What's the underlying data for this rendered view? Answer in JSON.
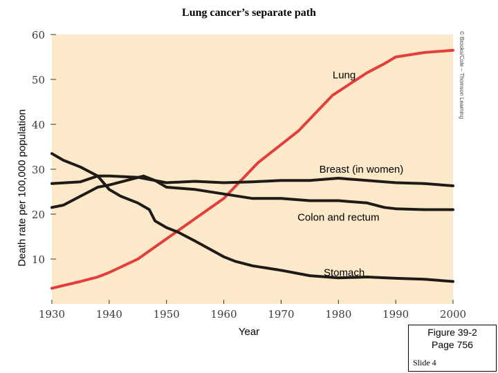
{
  "chart_data": {
    "type": "line",
    "title": "Lung cancer’s separate path",
    "xlabel": "Year",
    "ylabel": "Death rate per 100,000 population",
    "xlim": [
      1930,
      2000
    ],
    "ylim": [
      0,
      60
    ],
    "xticks": [
      "1930",
      "1940",
      "1950",
      "1960",
      "1970",
      "1980",
      "1990",
      "2000"
    ],
    "yticks": [
      "10",
      "20",
      "30",
      "40",
      "50",
      "60"
    ],
    "grid": false,
    "credit": "© Brooks/Cole – Thomson Learning",
    "series": [
      {
        "name": "Lung",
        "color": "#e53c3c",
        "x": [
          1930,
          1935,
          1938,
          1940,
          1945,
          1950,
          1955,
          1960,
          1963,
          1966,
          1970,
          1973,
          1976,
          1979,
          1982,
          1985,
          1988,
          1990,
          1995,
          2000
        ],
        "y": [
          3.5,
          5.0,
          6.0,
          7.0,
          10.0,
          14.5,
          19.0,
          23.5,
          27.5,
          31.5,
          35.5,
          38.5,
          42.5,
          46.5,
          49.0,
          51.5,
          53.5,
          55.0,
          56.0,
          56.5
        ]
      },
      {
        "name": "Breast (in women)",
        "color": "#1e1a17",
        "x": [
          1930,
          1935,
          1938,
          1940,
          1945,
          1950,
          1955,
          1960,
          1965,
          1970,
          1975,
          1980,
          1985,
          1990,
          1995,
          2000
        ],
        "y": [
          26.8,
          27.2,
          28.5,
          28.5,
          28.2,
          27.0,
          27.3,
          27.0,
          27.2,
          27.5,
          27.5,
          28.0,
          27.5,
          27.0,
          26.8,
          26.3
        ]
      },
      {
        "name": "Colon and rectum",
        "color": "#1e1a17",
        "x": [
          1930,
          1932,
          1935,
          1938,
          1940,
          1943,
          1946,
          1948,
          1950,
          1955,
          1960,
          1965,
          1970,
          1975,
          1980,
          1985,
          1988,
          1990,
          1995,
          2000
        ],
        "y": [
          21.5,
          22.0,
          24.0,
          26.0,
          26.5,
          27.5,
          28.5,
          27.5,
          26.0,
          25.5,
          24.5,
          23.5,
          23.5,
          23.0,
          23.0,
          22.5,
          21.5,
          21.2,
          21.0,
          21.0
        ]
      },
      {
        "name": "Stomach",
        "color": "#1e1a17",
        "x": [
          1930,
          1932,
          1935,
          1938,
          1940,
          1942,
          1945,
          1947,
          1948,
          1950,
          1952,
          1955,
          1960,
          1962,
          1965,
          1970,
          1975,
          1980,
          1985,
          1990,
          1995,
          2000
        ],
        "y": [
          33.5,
          32.0,
          30.5,
          28.5,
          25.5,
          24.0,
          22.5,
          21.0,
          18.5,
          17.0,
          16.0,
          14.0,
          10.5,
          9.5,
          8.5,
          7.5,
          6.3,
          5.8,
          6.0,
          5.7,
          5.5,
          5.0
        ]
      }
    ]
  },
  "figure_ref": {
    "line1": "Figure 39-2",
    "line2": "Page 756"
  },
  "slide_label": "Slide 4",
  "colors": {
    "plot_bg": "#fbe9c9",
    "lung": "#e53c3c",
    "others": "#1e1a17",
    "tick_text": "#3a3a3a"
  }
}
